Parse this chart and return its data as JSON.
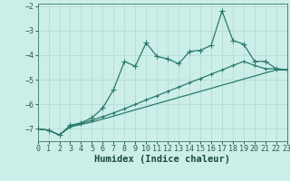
{
  "xlabel": "Humidex (Indice chaleur)",
  "bg_color": "#cceee8",
  "grid_color": "#b8ddd8",
  "line_color": "#2a7a6a",
  "xlim": [
    0,
    23
  ],
  "ylim": [
    -7.5,
    -1.9
  ],
  "yticks": [
    -7,
    -6,
    -5,
    -4,
    -3,
    -2
  ],
  "xticks": [
    0,
    1,
    2,
    3,
    4,
    5,
    6,
    7,
    8,
    9,
    10,
    11,
    12,
    13,
    14,
    15,
    16,
    17,
    18,
    19,
    20,
    21,
    22,
    23
  ],
  "line1_x": [
    0,
    1,
    2,
    3,
    4,
    5,
    6,
    7,
    8,
    9,
    10,
    11,
    12,
    13,
    14,
    15,
    16,
    17,
    18,
    19,
    20,
    21,
    22,
    23
  ],
  "line1_y": [
    -7.0,
    -7.05,
    -7.25,
    -6.85,
    -6.75,
    -6.55,
    -6.15,
    -5.4,
    -4.25,
    -4.45,
    -3.5,
    -4.05,
    -4.15,
    -4.35,
    -3.85,
    -3.8,
    -3.6,
    -2.2,
    -3.4,
    -3.55,
    -4.25,
    -4.25,
    -4.55,
    -4.6
  ],
  "line2_x": [
    0,
    1,
    2,
    3,
    4,
    5,
    6,
    7,
    8,
    9,
    10,
    11,
    12,
    13,
    14,
    15,
    16,
    17,
    18,
    19,
    20,
    21,
    22,
    23
  ],
  "line2_y": [
    -7.0,
    -7.05,
    -7.25,
    -6.9,
    -6.78,
    -6.65,
    -6.5,
    -6.35,
    -6.18,
    -6.0,
    -5.82,
    -5.65,
    -5.47,
    -5.3,
    -5.12,
    -4.95,
    -4.77,
    -4.6,
    -4.42,
    -4.25,
    -4.42,
    -4.55,
    -4.55,
    -4.6
  ],
  "line3_x": [
    0,
    1,
    2,
    3,
    4,
    5,
    6,
    7,
    8,
    9,
    10,
    11,
    12,
    13,
    14,
    15,
    16,
    17,
    18,
    19,
    20,
    21,
    22,
    23
  ],
  "line3_y": [
    -7.0,
    -7.05,
    -7.25,
    -6.92,
    -6.82,
    -6.72,
    -6.6,
    -6.48,
    -6.35,
    -6.22,
    -6.1,
    -5.97,
    -5.85,
    -5.72,
    -5.6,
    -5.47,
    -5.35,
    -5.22,
    -5.1,
    -4.97,
    -4.85,
    -4.72,
    -4.6,
    -4.6
  ],
  "marker_size": 2.5,
  "line_width": 0.9,
  "tick_fontsize": 6,
  "label_fontsize": 7.5
}
